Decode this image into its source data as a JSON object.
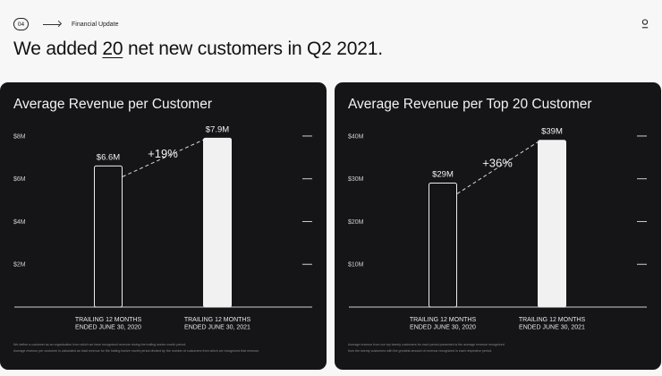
{
  "header": {
    "page_number": "04",
    "section": "Financial Update",
    "headline_before": "We added ",
    "headline_highlight": "20",
    "headline_after": " net new customers in Q2 2021."
  },
  "chart_data": [
    {
      "type": "bar",
      "title": "Average Revenue per Customer",
      "categories": [
        "TRAILING 12 MONTHS\nENDED JUNE 30, 2020",
        "TRAILING 12 MONTHS\nENDED JUNE 30, 2021"
      ],
      "values": [
        6.6,
        7.9
      ],
      "value_labels": [
        "$6.6M",
        "$7.9M"
      ],
      "change_label": "+19%",
      "ylim": [
        0,
        8.5
      ],
      "yticks": [
        2,
        4,
        6,
        8
      ],
      "ytick_labels": [
        "$2M",
        "$4M",
        "$6M",
        "$8M"
      ],
      "bar_styles": [
        "outline",
        "filled"
      ],
      "footnotes": [
        "We define a customer as an organization from which we have recognized revenue during the trailing twelve month period.",
        "Average revenue per customer is calculated as total revenue for the trailing twelve month period divided by the number of customers from which we recognized that revenue."
      ]
    },
    {
      "type": "bar",
      "title": "Average Revenue per Top 20 Customer",
      "categories": [
        "TRAILING 12 MONTHS\nENDED JUNE 30, 2020",
        "TRAILING 12 MONTHS\nENDED JUNE 30, 2021"
      ],
      "values": [
        29,
        39
      ],
      "value_labels": [
        "$29M",
        "$39M"
      ],
      "change_label": "+36%",
      "ylim": [
        0,
        42.5
      ],
      "yticks": [
        10,
        20,
        30,
        40
      ],
      "ytick_labels": [
        "$10M",
        "$20M",
        "$30M",
        "$40M"
      ],
      "bar_styles": [
        "outline",
        "filled"
      ],
      "footnotes": [
        "Average revenue from our top twenty customers for each period presented is the average revenue recognized",
        "from the twenty customers with the greatest amount of revenue recognized in each respective period."
      ]
    }
  ]
}
